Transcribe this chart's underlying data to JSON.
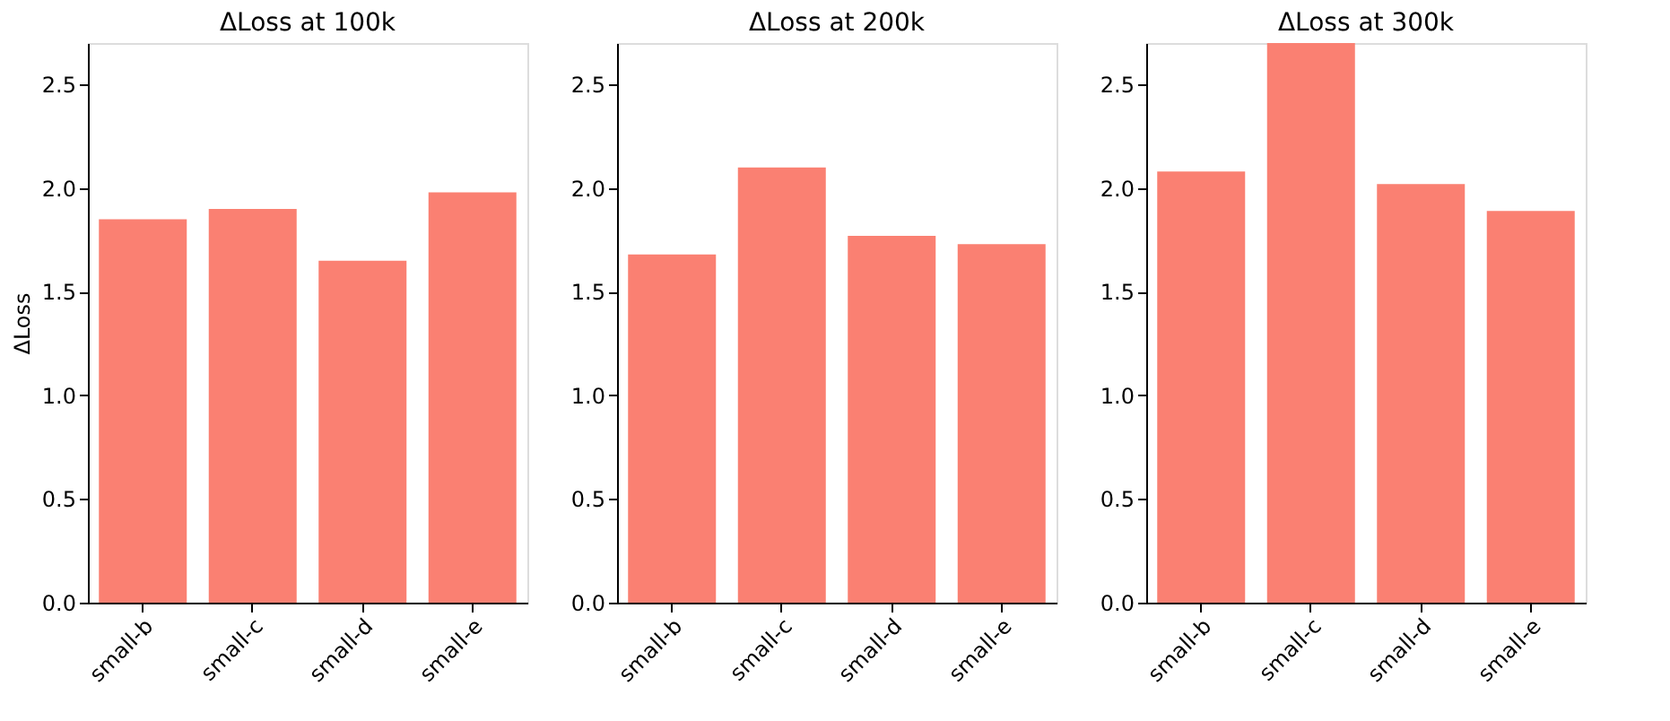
{
  "chart_data": [
    {
      "type": "bar",
      "title": "ΔLoss at 100k",
      "ylabel": "ΔLoss",
      "categories": [
        "small-b",
        "small-c",
        "small-d",
        "small-e"
      ],
      "values": [
        1.85,
        1.9,
        1.65,
        1.98
      ],
      "color": "#fa8072",
      "ylim": [
        0,
        2.7
      ],
      "yticks": [
        {
          "value": 0,
          "label": "0.0"
        },
        0.5,
        {
          "value": 1,
          "label": "1.0"
        },
        1.5,
        {
          "value": 2,
          "label": "2.0"
        },
        2.5
      ],
      "grid": false
    },
    {
      "type": "bar",
      "title": "ΔLoss at 200k",
      "categories": [
        "small-b",
        "small-c",
        "small-d",
        "small-e"
      ],
      "values": [
        1.68,
        2.1,
        1.77,
        1.73
      ],
      "color": "#fa8072",
      "ylim": [
        0,
        2.7
      ],
      "yticks": [
        {
          "value": 0,
          "label": "0.0"
        },
        0.5,
        {
          "value": 1,
          "label": "1.0"
        },
        1.5,
        {
          "value": 2,
          "label": "2.0"
        },
        2.5
      ],
      "grid": false
    },
    {
      "type": "bar",
      "title": "ΔLoss at 300k",
      "categories": [
        "small-b",
        "small-c",
        "small-d",
        "small-e"
      ],
      "values": [
        2.08,
        2.7,
        2.02,
        1.89
      ],
      "color": "#fa8072",
      "ylim": [
        0,
        2.7
      ],
      "yticks": [
        {
          "value": 0,
          "label": "0.0"
        },
        0.5,
        {
          "value": 1,
          "label": "1.0"
        },
        1.5,
        {
          "value": 2,
          "label": "2.0"
        },
        2.5
      ],
      "grid": false
    }
  ]
}
